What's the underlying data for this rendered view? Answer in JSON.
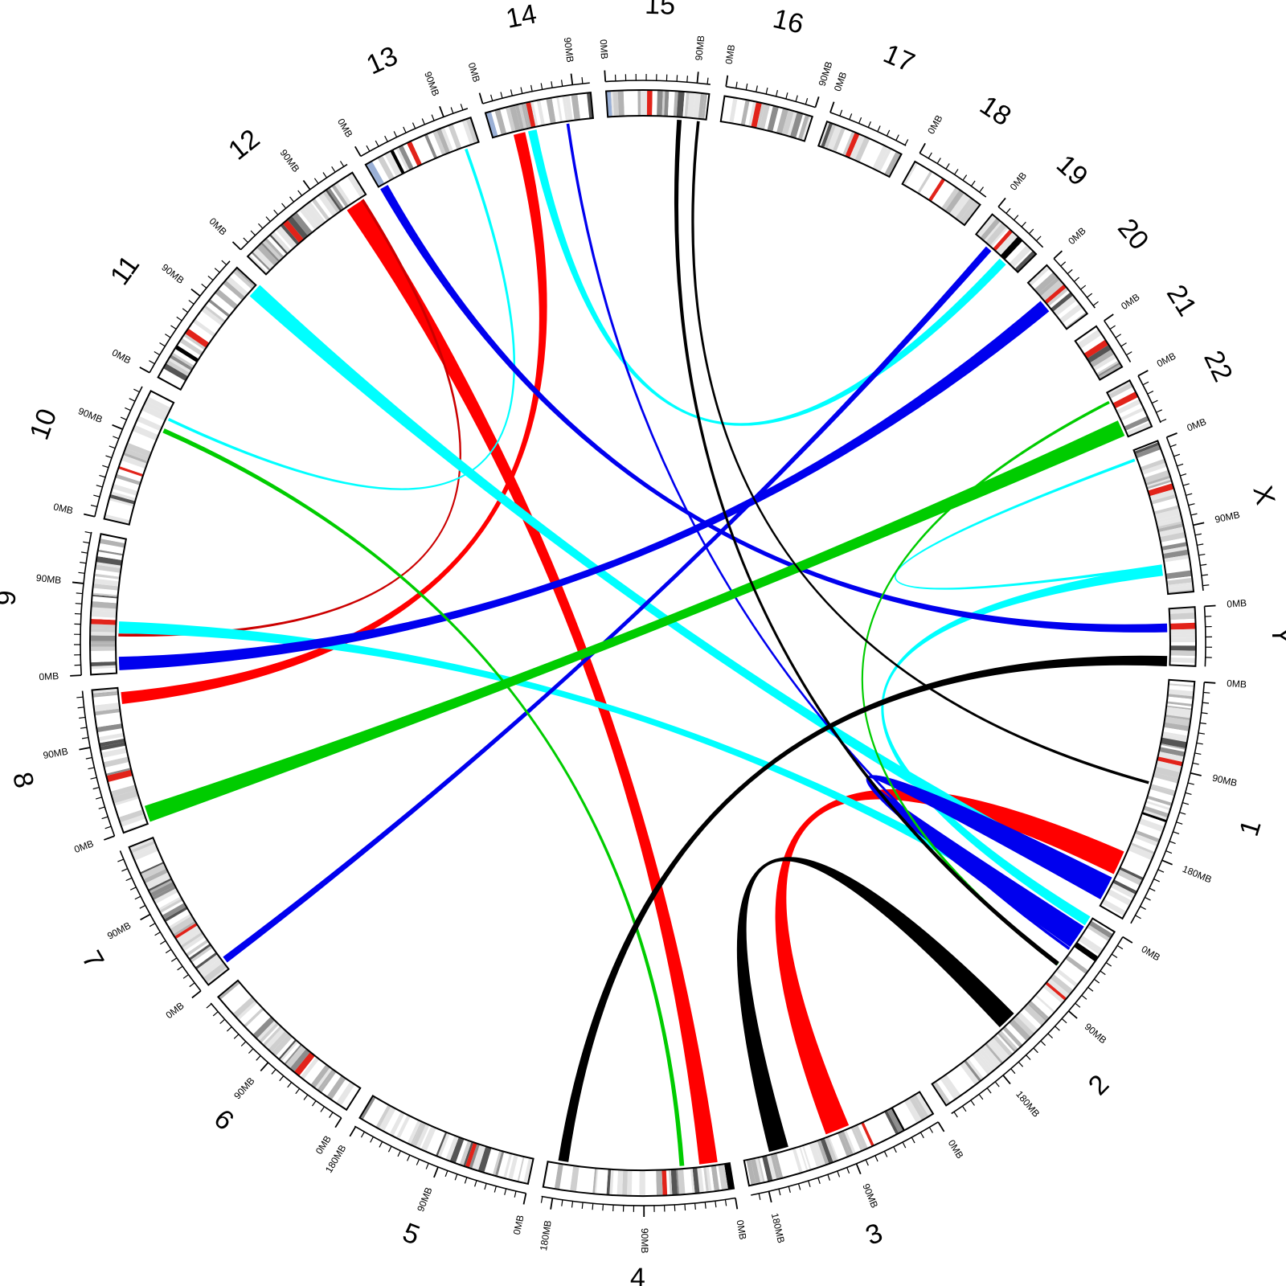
{
  "chart_data": {
    "type": "circos",
    "title": "",
    "units_per_label": "MB",
    "tick_step_label": 90,
    "chromosomes": [
      {
        "name": "1",
        "length": 249,
        "start_label": "0MB",
        "labels": [
          "0MB",
          "90MB",
          "180MB"
        ]
      },
      {
        "name": "2",
        "length": 243,
        "start_label": "0MB",
        "labels": [
          "0MB",
          "90MB",
          "180MB"
        ]
      },
      {
        "name": "3",
        "length": 198,
        "start_label": "0MB",
        "labels": [
          "0MB",
          "90MB",
          "180MB"
        ]
      },
      {
        "name": "4",
        "length": 191,
        "start_label": "0MB",
        "labels": [
          "0MB",
          "90MB",
          "180MB"
        ]
      },
      {
        "name": "5",
        "length": 181,
        "start_label": "0MB",
        "labels": [
          "0MB",
          "90MB",
          "180MB"
        ]
      },
      {
        "name": "6",
        "length": 171,
        "start_label": "0MB",
        "labels": [
          "0MB",
          "90MB"
        ]
      },
      {
        "name": "7",
        "length": 159,
        "start_label": "0MB",
        "labels": [
          "0MB",
          "90MB"
        ]
      },
      {
        "name": "8",
        "length": 146,
        "start_label": "0MB",
        "labels": [
          "0MB",
          "90MB"
        ]
      },
      {
        "name": "9",
        "length": 141,
        "start_label": "0MB",
        "labels": [
          "0MB",
          "90MB"
        ]
      },
      {
        "name": "10",
        "length": 136,
        "start_label": "0MB",
        "labels": [
          "0MB",
          "90MB"
        ]
      },
      {
        "name": "11",
        "length": 135,
        "start_label": "0MB",
        "labels": [
          "0MB",
          "90MB"
        ]
      },
      {
        "name": "12",
        "length": 134,
        "start_label": "0MB",
        "labels": [
          "0MB",
          "90MB"
        ]
      },
      {
        "name": "13",
        "length": 115,
        "start_label": "0MB",
        "labels": [
          "0MB",
          "90MB"
        ]
      },
      {
        "name": "14",
        "length": 107,
        "start_label": "0MB",
        "labels": [
          "0MB",
          "90MB"
        ]
      },
      {
        "name": "15",
        "length": 103,
        "start_label": "0MB",
        "labels": [
          "0MB",
          "90MB"
        ]
      },
      {
        "name": "16",
        "length": 90,
        "start_label": "0MB",
        "labels": [
          "0MB",
          "90MB"
        ]
      },
      {
        "name": "17",
        "length": 81,
        "start_label": "0MB",
        "labels": [
          "0MB"
        ]
      },
      {
        "name": "18",
        "length": 78,
        "start_label": "0MB",
        "labels": [
          "0MB"
        ]
      },
      {
        "name": "19",
        "length": 59,
        "start_label": "0MB",
        "labels": [
          "0MB"
        ]
      },
      {
        "name": "20",
        "length": 63,
        "start_label": "0MB",
        "labels": [
          "0MB"
        ]
      },
      {
        "name": "21",
        "length": 48,
        "start_label": "0MB",
        "labels": [
          "0MB"
        ]
      },
      {
        "name": "22",
        "length": 51,
        "start_label": "0MB",
        "labels": [
          "0MB"
        ]
      },
      {
        "name": "X",
        "length": 155,
        "start_label": "0MB",
        "labels": [
          "0MB",
          "90MB"
        ]
      },
      {
        "name": "Y",
        "length": 59,
        "start_label": "0MB",
        "labels": [
          "0MB"
        ]
      }
    ],
    "links": [
      {
        "a": {
          "chr": "14",
          "pos": 28
        },
        "b": {
          "chr": "8",
          "pos": 135
        },
        "color": "#ff0000",
        "width": 14
      },
      {
        "a": {
          "chr": "12",
          "pos": 118
        },
        "b": {
          "chr": "4",
          "pos": 22
        },
        "color": "#ff0000",
        "width": 22
      },
      {
        "a": {
          "chr": "12",
          "pos": 128
        },
        "b": {
          "chr": "9",
          "pos": 40
        },
        "color": "#cc0000",
        "width": 2
      },
      {
        "a": {
          "chr": "1",
          "pos": 200
        },
        "b": {
          "chr": "3",
          "pos": 95
        },
        "color": "#ff0000",
        "width": 30
      },
      {
        "a": {
          "chr": "14",
          "pos": 42
        },
        "b": {
          "chr": "19",
          "pos": 40
        },
        "color": "#00ffff",
        "width": 10
      },
      {
        "a": {
          "chr": "13",
          "pos": 100
        },
        "b": {
          "chr": "10",
          "pos": 118
        },
        "color": "#00ffff",
        "width": 2
      },
      {
        "a": {
          "chr": "11",
          "pos": 130
        },
        "b": {
          "chr": "1",
          "pos": 230
        },
        "color": "#00ffff",
        "width": 18
      },
      {
        "a": {
          "chr": "9",
          "pos": 48
        },
        "b": {
          "chr": "2",
          "pos": 20
        },
        "color": "#00ffff",
        "width": 14
      },
      {
        "a": {
          "chr": "X",
          "pos": 10
        },
        "b": {
          "chr": "X",
          "pos": 125
        },
        "color": "#00ffff",
        "width": 2
      },
      {
        "a": {
          "chr": "X",
          "pos": 130
        },
        "b": {
          "chr": "2",
          "pos": 5
        },
        "color": "#00ffff",
        "width": 12
      },
      {
        "a": {
          "chr": "19",
          "pos": 20
        },
        "b": {
          "chr": "7",
          "pos": 10
        },
        "color": "#0000ee",
        "width": 8
      },
      {
        "a": {
          "chr": "20",
          "pos": 30
        },
        "b": {
          "chr": "9",
          "pos": 10
        },
        "color": "#0000ee",
        "width": 16
      },
      {
        "a": {
          "chr": "13",
          "pos": 5
        },
        "b": {
          "chr": "Y",
          "pos": 20
        },
        "color": "#0000ee",
        "width": 10
      },
      {
        "a": {
          "chr": "2",
          "pos": 40
        },
        "b": {
          "chr": "14",
          "pos": 80
        },
        "color": "#0000ee",
        "width": 2
      },
      {
        "a": {
          "chr": "1",
          "pos": 230
        },
        "b": {
          "chr": "2",
          "pos": 25
        },
        "color": "#0000ee",
        "width": 30
      },
      {
        "a": {
          "chr": "22",
          "pos": 40
        },
        "b": {
          "chr": "8",
          "pos": 10
        },
        "color": "#00cc00",
        "width": 20
      },
      {
        "a": {
          "chr": "10",
          "pos": 105
        },
        "b": {
          "chr": "4",
          "pos": 50
        },
        "color": "#00cc00",
        "width": 5
      },
      {
        "a": {
          "chr": "22",
          "pos": 10
        },
        "b": {
          "chr": "2",
          "pos": 60
        },
        "color": "#00cc00",
        "width": 2
      },
      {
        "a": {
          "chr": "15",
          "pos": 75
        },
        "b": {
          "chr": "2",
          "pos": 60
        },
        "color": "#000000",
        "width": 5
      },
      {
        "a": {
          "chr": "15",
          "pos": 95
        },
        "b": {
          "chr": "1",
          "pos": 110
        },
        "color": "#000000",
        "width": 2
      },
      {
        "a": {
          "chr": "Y",
          "pos": 55
        },
        "b": {
          "chr": "4",
          "pos": 175
        },
        "color": "#000000",
        "width": 12
      },
      {
        "a": {
          "chr": "3",
          "pos": 160
        },
        "b": {
          "chr": "2",
          "pos": 140
        },
        "color": "#000000",
        "width": 24
      }
    ]
  }
}
